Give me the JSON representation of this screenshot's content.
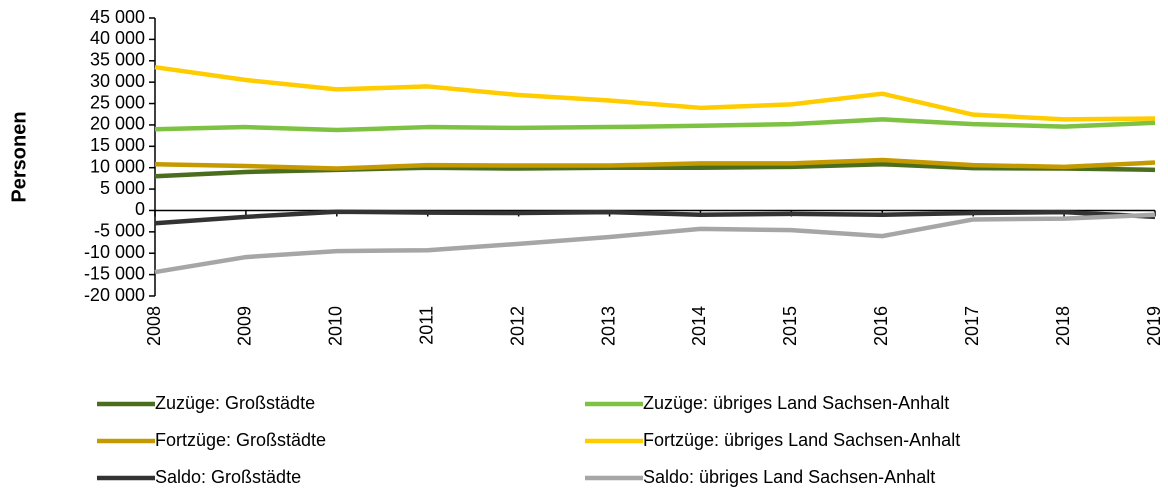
{
  "chart_data": {
    "type": "line",
    "y_label": "Personen",
    "categories": [
      "2008",
      "2009",
      "2010",
      "2011",
      "2012",
      "2013",
      "2014",
      "2015",
      "2016",
      "2017",
      "2018",
      "2019"
    ],
    "ylim": [
      -20000,
      45000
    ],
    "yticks": [
      {
        "value": -20000,
        "label": "-20 000"
      },
      {
        "value": -15000,
        "label": "-15 000"
      },
      {
        "value": -10000,
        "label": "-10 000"
      },
      {
        "value": -5000,
        "label": "-5 000"
      },
      0,
      {
        "value": 5000,
        "label": "5 000"
      },
      {
        "value": 10000,
        "label": "10 000"
      },
      {
        "value": 15000,
        "label": "15 000"
      },
      {
        "value": 20000,
        "label": "20 000"
      },
      {
        "value": 25000,
        "label": "25 000"
      },
      {
        "value": 30000,
        "label": "30 000"
      },
      {
        "value": 35000,
        "label": "35 000"
      },
      {
        "value": 40000,
        "label": "40 000"
      },
      {
        "value": 45000,
        "label": "45 000"
      }
    ],
    "series": [
      {
        "name": "Zuzüge: Großstädte",
        "color": "#4a6e1e",
        "values": [
          8000,
          9000,
          9500,
          10000,
          9800,
          10000,
          10000,
          10200,
          10800,
          9900,
          9800,
          9500
        ]
      },
      {
        "name": "Zuzüge: übriges Land Sachsen-Anhalt",
        "color": "#7dc242",
        "values": [
          19000,
          19500,
          18800,
          19500,
          19300,
          19500,
          19800,
          20200,
          21300,
          20200,
          19600,
          20500
        ]
      },
      {
        "name": "Fortzüge: Großstädte",
        "color": "#c49a00",
        "values": [
          10800,
          10400,
          9800,
          10600,
          10500,
          10500,
          11000,
          11000,
          11800,
          10600,
          10200,
          11200
        ]
      },
      {
        "name": "Fortzüge: übriges Land Sachsen-Anhalt",
        "color": "#ffcc00",
        "values": [
          33500,
          30500,
          28300,
          29000,
          27000,
          25700,
          24000,
          24800,
          27300,
          22400,
          21300,
          21500
        ]
      },
      {
        "name": "Saldo: Großstädte",
        "color": "#333333",
        "values": [
          -3000,
          -1500,
          -300,
          -500,
          -600,
          -400,
          -1000,
          -800,
          -1000,
          -600,
          -400,
          -1500
        ]
      },
      {
        "name": "Saldo: übriges Land Sachsen-Anhalt",
        "color": "#a6a6a6",
        "values": [
          -14400,
          -10900,
          -9500,
          -9300,
          -7800,
          -6200,
          -4300,
          -4600,
          -6000,
          -2100,
          -1900,
          -1000
        ]
      }
    ]
  }
}
